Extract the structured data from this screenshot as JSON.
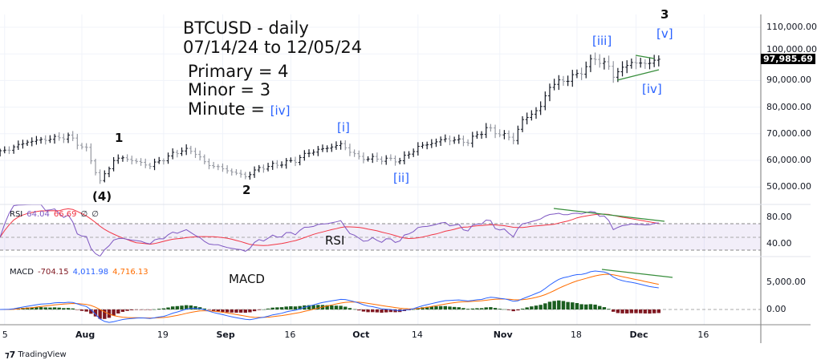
{
  "title": {
    "line1": "BTCUSD - daily",
    "line2": "07/14/24 to 12/05/24",
    "primary": "Primary = 4",
    "minor": "Minor = 3",
    "minute": "Minute = ",
    "minute_wave": "[iv]"
  },
  "last_price": "97,985.69",
  "rsi_legend": {
    "name": "RSI",
    "v1": "64.04",
    "v2": "66.69",
    "v3": "∅",
    "v4": "∅"
  },
  "macd_legend": {
    "name": "MACD",
    "v1": "-704.15",
    "v2": "4,011.98",
    "v3": "4,716.13"
  },
  "pane_labels": {
    "rsi": "RSI",
    "macd": "MACD"
  },
  "wave_labels": {
    "w1": "1",
    "w4p": "(4)",
    "w2": "2",
    "wi": "[i]",
    "wii": "[ii]",
    "wiii": "[iii]",
    "w3": "3",
    "wv": "[v]",
    "wiv": "[iv]"
  },
  "branding": "TradingView",
  "colors": {
    "rsi": "#7e57c2",
    "rsi_ma": "#f23645",
    "macd": "#2962ff",
    "signal": "#ff6d00",
    "hist_up": "#1b5e20",
    "hist_down": "#801922",
    "trend": "#388e3c"
  },
  "chart_data": {
    "type": "ohlc",
    "symbol": "BTCUSD",
    "interval": "daily",
    "price_axis": {
      "ticks": [
        "110,000.00",
        "100,000.00",
        "90,000.00",
        "80,000.00",
        "70,000.00",
        "60,000.00",
        "50,000.00"
      ],
      "values": [
        110000,
        100000,
        90000,
        80000,
        70000,
        60000,
        50000
      ],
      "range": [
        45000,
        115000
      ]
    },
    "rsi_axis": {
      "ticks": [
        "80.00",
        "40.00"
      ],
      "values": [
        80,
        40
      ]
    },
    "macd_axis": {
      "ticks": [
        "5,000.00",
        "0.00"
      ],
      "values": [
        5000,
        0
      ]
    },
    "x_ticks": [
      {
        "label": "5",
        "date": "2024-07-15"
      },
      {
        "label": "Aug",
        "date": "2024-08-01"
      },
      {
        "label": "19",
        "date": "2024-08-19"
      },
      {
        "label": "Sep",
        "date": "2024-09-01"
      },
      {
        "label": "16",
        "date": "2024-09-16"
      },
      {
        "label": "Oct",
        "date": "2024-10-01"
      },
      {
        "label": "14",
        "date": "2024-10-14"
      },
      {
        "label": "Nov",
        "date": "2024-11-01"
      },
      {
        "label": "18",
        "date": "2024-11-18"
      },
      {
        "label": "Dec",
        "date": "2024-12-01"
      },
      {
        "label": "16",
        "date": "2024-12-16"
      }
    ],
    "close_keypoints": [
      [
        "2024-07-14",
        63000
      ],
      [
        "2024-07-20",
        67000
      ],
      [
        "2024-07-29",
        69000
      ],
      [
        "2024-08-02",
        64000
      ],
      [
        "2024-08-05",
        52000
      ],
      [
        "2024-08-08",
        60000
      ],
      [
        "2024-08-10",
        61000
      ],
      [
        "2024-08-16",
        58000
      ],
      [
        "2024-08-23",
        64000
      ],
      [
        "2024-08-26",
        63000
      ],
      [
        "2024-08-28",
        59000
      ],
      [
        "2024-09-06",
        54000
      ],
      [
        "2024-09-09",
        57000
      ],
      [
        "2024-09-17",
        60000
      ],
      [
        "2024-09-20",
        63000
      ],
      [
        "2024-09-27",
        66000
      ],
      [
        "2024-10-01",
        61000
      ],
      [
        "2024-10-10",
        60000
      ],
      [
        "2024-10-14",
        65000
      ],
      [
        "2024-10-20",
        68000
      ],
      [
        "2024-10-25",
        67000
      ],
      [
        "2024-10-29",
        72000
      ],
      [
        "2024-11-04",
        68000
      ],
      [
        "2024-11-06",
        75000
      ],
      [
        "2024-11-10",
        80000
      ],
      [
        "2024-11-12",
        88000
      ],
      [
        "2024-11-18",
        92000
      ],
      [
        "2024-11-22",
        98500
      ],
      [
        "2024-11-25",
        95000
      ],
      [
        "2024-11-26",
        92000
      ],
      [
        "2024-11-30",
        97000
      ],
      [
        "2024-12-03",
        96000
      ],
      [
        "2024-12-05",
        98000
      ],
      [
        "2024-12-06",
        97985.69
      ]
    ],
    "indicators": [
      "RSI 14 with MA",
      "MACD 12 26 9"
    ]
  }
}
